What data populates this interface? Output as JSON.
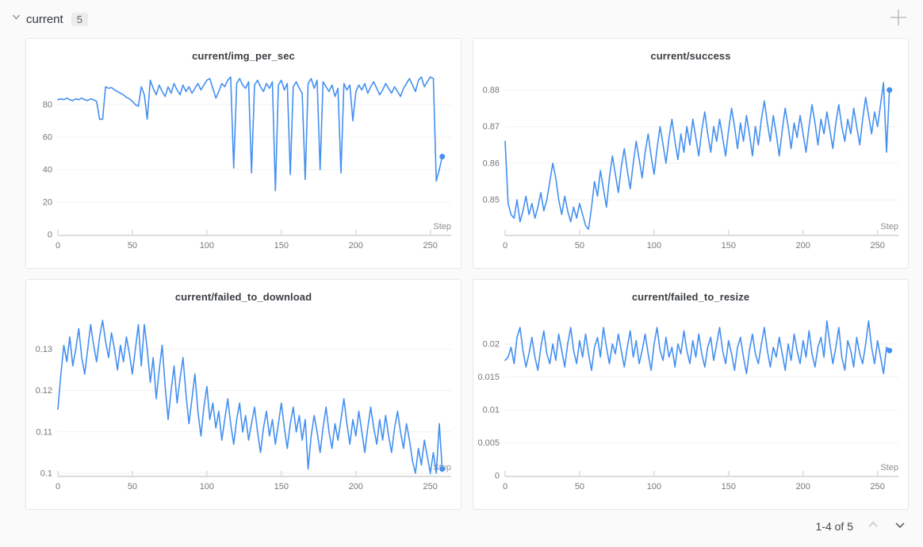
{
  "ui": {
    "section": {
      "title": "current",
      "count": "5"
    },
    "pagination": {
      "label": "1-4 of 5"
    },
    "colors": {
      "line": "#4490f0",
      "grid": "#f1f1f1",
      "axis": "#dcdcdc",
      "tick_text": "#75787d",
      "step_text": "#8b8e93"
    }
  },
  "chart_data": [
    {
      "type": "line",
      "title": "current/img_per_sec",
      "xlabel": "Step",
      "xlim": [
        0,
        264
      ],
      "x_ticks": [
        0,
        50,
        100,
        150,
        200,
        250
      ],
      "ylim": [
        0,
        98
      ],
      "y_ticks": [
        0,
        20,
        40,
        60,
        80
      ],
      "y_tick_labels": [
        "0",
        "20",
        "40",
        "60",
        "80"
      ],
      "color": "#4490f0",
      "end_marker": true,
      "x_start": 0,
      "x_step": 2,
      "values": [
        83,
        83.5,
        83,
        84,
        83,
        82.5,
        83.5,
        83,
        84,
        83,
        82.5,
        83.5,
        83,
        82,
        71,
        71,
        91,
        90,
        90.5,
        89,
        88,
        87,
        86,
        84.5,
        83.5,
        82,
        80,
        79,
        91,
        86,
        71,
        95,
        90,
        86,
        92,
        88,
        85,
        91,
        87,
        93,
        89,
        86,
        92,
        88,
        91,
        87,
        90,
        93,
        89,
        92,
        95,
        96,
        90,
        84,
        88,
        93,
        91,
        95,
        97,
        41,
        93,
        96,
        92,
        90,
        94,
        38,
        92,
        95,
        91,
        88,
        93,
        90,
        94,
        27,
        92,
        95,
        89,
        93,
        37,
        91,
        94,
        90,
        87,
        34,
        93,
        96,
        90,
        95,
        40,
        94,
        91,
        88,
        92,
        85,
        90,
        38,
        93,
        89,
        92,
        70,
        88,
        92,
        89,
        93,
        87,
        91,
        94,
        90,
        86,
        89,
        93,
        90,
        87,
        91,
        88,
        85,
        90,
        93,
        96,
        92,
        88,
        95,
        97,
        91,
        94,
        97,
        96,
        33,
        40,
        48
      ]
    },
    {
      "type": "line",
      "title": "current/success",
      "xlabel": "Step",
      "xlim": [
        0,
        264
      ],
      "x_ticks": [
        0,
        50,
        100,
        150,
        200,
        250
      ],
      "ylim": [
        0.8405,
        0.884
      ],
      "y_ticks": [
        0.85,
        0.86,
        0.87,
        0.88
      ],
      "y_tick_labels": [
        "0.85",
        "0.86",
        "0.87",
        "0.88"
      ],
      "color": "#4490f0",
      "end_marker": true,
      "x_start": 0,
      "x_step": 2,
      "values": [
        0.866,
        0.849,
        0.846,
        0.845,
        0.85,
        0.844,
        0.847,
        0.851,
        0.846,
        0.849,
        0.845,
        0.848,
        0.852,
        0.847,
        0.85,
        0.855,
        0.86,
        0.856,
        0.85,
        0.846,
        0.851,
        0.847,
        0.844,
        0.848,
        0.845,
        0.849,
        0.846,
        0.843,
        0.842,
        0.848,
        0.855,
        0.851,
        0.858,
        0.853,
        0.848,
        0.856,
        0.862,
        0.857,
        0.852,
        0.859,
        0.864,
        0.858,
        0.853,
        0.86,
        0.866,
        0.861,
        0.856,
        0.863,
        0.868,
        0.862,
        0.857,
        0.864,
        0.87,
        0.865,
        0.86,
        0.867,
        0.872,
        0.866,
        0.861,
        0.868,
        0.863,
        0.87,
        0.865,
        0.872,
        0.867,
        0.862,
        0.869,
        0.874,
        0.868,
        0.863,
        0.87,
        0.866,
        0.872,
        0.867,
        0.862,
        0.869,
        0.875,
        0.87,
        0.864,
        0.871,
        0.866,
        0.873,
        0.868,
        0.862,
        0.87,
        0.865,
        0.872,
        0.877,
        0.871,
        0.866,
        0.873,
        0.868,
        0.862,
        0.869,
        0.875,
        0.87,
        0.864,
        0.871,
        0.867,
        0.873,
        0.868,
        0.863,
        0.87,
        0.876,
        0.871,
        0.865,
        0.872,
        0.868,
        0.874,
        0.869,
        0.864,
        0.871,
        0.876,
        0.87,
        0.866,
        0.872,
        0.868,
        0.875,
        0.87,
        0.865,
        0.872,
        0.878,
        0.873,
        0.868,
        0.874,
        0.87,
        0.876,
        0.882,
        0.863,
        0.88
      ]
    },
    {
      "type": "line",
      "title": "current/failed_to_download",
      "xlabel": "Step",
      "xlim": [
        0,
        264
      ],
      "x_ticks": [
        0,
        50,
        100,
        150,
        200,
        250
      ],
      "ylim": [
        0.0994,
        0.138
      ],
      "y_ticks": [
        0.1,
        0.11,
        0.12,
        0.13
      ],
      "y_tick_labels": [
        "0.1",
        "0.11",
        "0.12",
        "0.13"
      ],
      "color": "#4490f0",
      "end_marker": true,
      "x_start": 0,
      "x_step": 2,
      "values": [
        0.1155,
        0.124,
        0.131,
        0.127,
        0.133,
        0.126,
        0.13,
        0.135,
        0.128,
        0.124,
        0.13,
        0.136,
        0.131,
        0.127,
        0.133,
        0.137,
        0.132,
        0.128,
        0.134,
        0.13,
        0.125,
        0.131,
        0.127,
        0.133,
        0.129,
        0.124,
        0.13,
        0.136,
        0.126,
        0.136,
        0.13,
        0.122,
        0.128,
        0.118,
        0.125,
        0.131,
        0.121,
        0.113,
        0.12,
        0.126,
        0.117,
        0.123,
        0.128,
        0.119,
        0.112,
        0.118,
        0.124,
        0.115,
        0.109,
        0.116,
        0.121,
        0.113,
        0.117,
        0.111,
        0.115,
        0.108,
        0.113,
        0.118,
        0.112,
        0.107,
        0.113,
        0.117,
        0.11,
        0.114,
        0.108,
        0.112,
        0.116,
        0.11,
        0.105,
        0.111,
        0.115,
        0.109,
        0.113,
        0.107,
        0.112,
        0.117,
        0.111,
        0.106,
        0.112,
        0.116,
        0.11,
        0.114,
        0.108,
        0.113,
        0.101,
        0.109,
        0.114,
        0.11,
        0.105,
        0.111,
        0.116,
        0.11,
        0.106,
        0.112,
        0.108,
        0.113,
        0.118,
        0.112,
        0.107,
        0.113,
        0.109,
        0.115,
        0.11,
        0.105,
        0.111,
        0.116,
        0.111,
        0.107,
        0.113,
        0.108,
        0.114,
        0.109,
        0.105,
        0.111,
        0.115,
        0.11,
        0.106,
        0.112,
        0.108,
        0.103,
        0.1,
        0.106,
        0.102,
        0.108,
        0.104,
        0.1,
        0.105,
        0.1,
        0.112,
        0.101
      ]
    },
    {
      "type": "line",
      "title": "current/failed_to_resize",
      "xlabel": "Step",
      "xlim": [
        0,
        264
      ],
      "x_ticks": [
        0,
        50,
        100,
        150,
        200,
        250
      ],
      "ylim": [
        0,
        0.0242
      ],
      "y_ticks": [
        0,
        0.005,
        0.01,
        0.015,
        0.02
      ],
      "y_tick_labels": [
        "0",
        "0.005",
        "0.01",
        "0.015",
        "0.02"
      ],
      "color": "#4490f0",
      "end_marker": true,
      "x_start": 0,
      "x_step": 2,
      "values": [
        0.0175,
        0.018,
        0.0195,
        0.017,
        0.021,
        0.0225,
        0.019,
        0.0165,
        0.0185,
        0.021,
        0.018,
        0.016,
        0.0195,
        0.022,
        0.0185,
        0.017,
        0.02,
        0.0175,
        0.0215,
        0.019,
        0.0165,
        0.02,
        0.0225,
        0.019,
        0.017,
        0.0205,
        0.018,
        0.0215,
        0.0185,
        0.016,
        0.0195,
        0.021,
        0.018,
        0.0225,
        0.0195,
        0.017,
        0.02,
        0.0185,
        0.0215,
        0.019,
        0.0165,
        0.0195,
        0.022,
        0.018,
        0.0205,
        0.017,
        0.019,
        0.0215,
        0.0185,
        0.016,
        0.02,
        0.0225,
        0.019,
        0.0175,
        0.021,
        0.018,
        0.0195,
        0.0165,
        0.02,
        0.0185,
        0.022,
        0.019,
        0.017,
        0.0205,
        0.018,
        0.0215,
        0.0185,
        0.0165,
        0.0195,
        0.021,
        0.0175,
        0.02,
        0.0225,
        0.019,
        0.017,
        0.0205,
        0.0185,
        0.016,
        0.0195,
        0.021,
        0.018,
        0.0155,
        0.019,
        0.0215,
        0.0185,
        0.017,
        0.02,
        0.0225,
        0.019,
        0.0165,
        0.0195,
        0.018,
        0.021,
        0.0185,
        0.016,
        0.02,
        0.0175,
        0.0215,
        0.019,
        0.017,
        0.0205,
        0.018,
        0.022,
        0.0185,
        0.0165,
        0.0195,
        0.021,
        0.018,
        0.0235,
        0.02,
        0.017,
        0.0195,
        0.0225,
        0.018,
        0.016,
        0.0205,
        0.019,
        0.0165,
        0.021,
        0.0185,
        0.017,
        0.02,
        0.0235,
        0.0195,
        0.017,
        0.0205,
        0.018,
        0.0155,
        0.0195,
        0.019
      ]
    }
  ]
}
